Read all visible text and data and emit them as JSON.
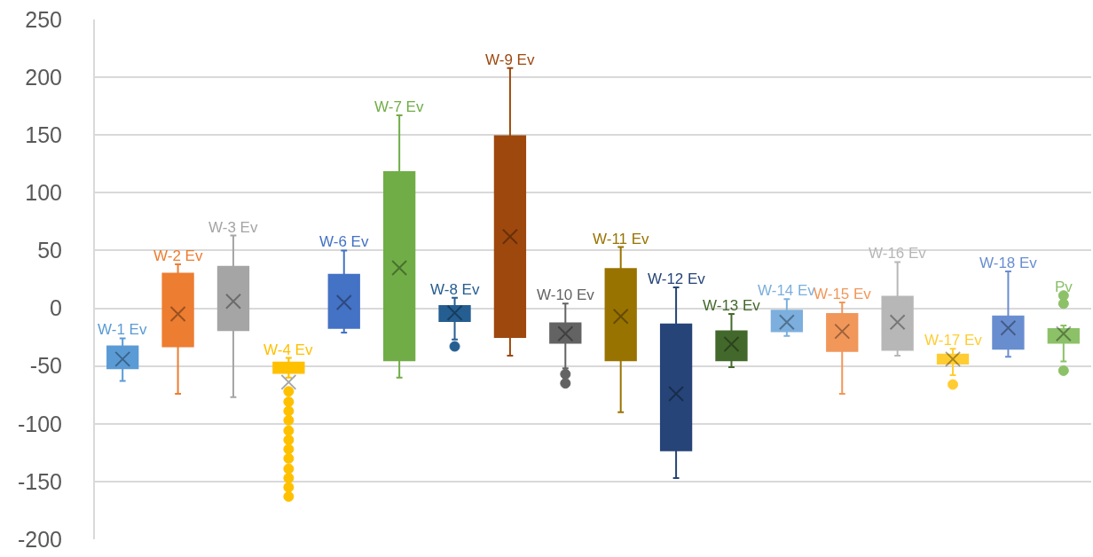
{
  "chart_data": {
    "type": "box",
    "categories": [
      null
    ],
    "ylim": [
      -200,
      250
    ],
    "yticks": [
      -200,
      -150,
      -100,
      -50,
      0,
      50,
      100,
      150,
      200,
      250
    ],
    "grid": "y",
    "tick_labels": "y",
    "marker": "circle",
    "series": [
      {
        "name": "W-1 Ev",
        "color": "#5b9bd5",
        "boxes": [
          {
            "low": -63,
            "q1": -52,
            "median": -47,
            "q3": -33,
            "high": -26,
            "mean": -44
          }
        ]
      },
      {
        "name": "W-2 Ev",
        "color": "#ed7d31",
        "boxes": [
          {
            "low": -74,
            "q1": -33,
            "median": -3,
            "q3": 30,
            "high": 38,
            "mean": -5
          }
        ]
      },
      {
        "name": "W-3 Ev",
        "color": "#a5a5a5",
        "boxes": [
          {
            "low": -77,
            "q1": -19,
            "median": 7,
            "q3": 36,
            "high": 63,
            "mean": 6
          }
        ]
      },
      {
        "name": "W-4 Ev",
        "color": "#ffc000",
        "boxes": [
          {
            "low": -60,
            "q1": -56,
            "median": -52,
            "q3": -47,
            "high": -43,
            "mean": -64,
            "outliers": [
              -72,
              -81,
              -89,
              -97,
              -106,
              -114,
              -122,
              -130,
              -139,
              -147,
              -155,
              -163
            ]
          }
        ]
      },
      {
        "name": "W-6 Ev",
        "color": "#4472c4",
        "boxes": [
          {
            "low": -21,
            "q1": -17,
            "median": -10,
            "q3": 29,
            "high": 50,
            "mean": 5
          }
        ]
      },
      {
        "name": "W-7 Ev",
        "color": "#70ad47",
        "boxes": [
          {
            "low": -60,
            "q1": -45,
            "median": 3,
            "q3": 118,
            "high": 167,
            "mean": 35
          }
        ]
      },
      {
        "name": "W-8 Ev",
        "color": "#255e91",
        "boxes": [
          {
            "low": -27,
            "q1": -11,
            "median": -4,
            "q3": 2,
            "high": 9,
            "mean": -4,
            "outliers": [
              -33
            ]
          }
        ]
      },
      {
        "name": "W-9 Ev",
        "color": "#9e480e",
        "boxes": [
          {
            "low": -41,
            "q1": -25,
            "median": 42,
            "q3": 149,
            "high": 208,
            "mean": 62
          }
        ]
      },
      {
        "name": "W-10 Ev",
        "color": "#636363",
        "boxes": [
          {
            "low": -52,
            "q1": -30,
            "median": -21,
            "q3": -13,
            "high": 4,
            "mean": -22,
            "outliers": [
              -57,
              -65
            ]
          }
        ]
      },
      {
        "name": "W-11 Ev",
        "color": "#997300",
        "boxes": [
          {
            "low": -90,
            "q1": -45,
            "median": -3,
            "q3": 34,
            "high": 53,
            "mean": -7
          }
        ]
      },
      {
        "name": "W-12 Ev",
        "color": "#264478",
        "boxes": [
          {
            "low": -147,
            "q1": -123,
            "median": -106,
            "q3": -14,
            "high": 18,
            "mean": -74
          }
        ]
      },
      {
        "name": "W-13 Ev",
        "color": "#43682b",
        "boxes": [
          {
            "low": -51,
            "q1": -45,
            "median": -30,
            "q3": -20,
            "high": -5,
            "mean": -31
          }
        ]
      },
      {
        "name": "W-14 Ev",
        "color": "#7cafdd",
        "boxes": [
          {
            "low": -24,
            "q1": -20,
            "median": -19,
            "q3": -2,
            "high": 8,
            "mean": -12
          }
        ]
      },
      {
        "name": "W-15 Ev",
        "color": "#f1975a",
        "boxes": [
          {
            "low": -74,
            "q1": -37,
            "median": -15,
            "q3": -5,
            "high": 5,
            "mean": -20
          }
        ]
      },
      {
        "name": "W-16 Ev",
        "color": "#b7b7b7",
        "boxes": [
          {
            "low": -41,
            "q1": -36,
            "median": -17,
            "q3": 10,
            "high": 40,
            "mean": -12
          }
        ]
      },
      {
        "name": "W-17 Ev",
        "color": "#ffcd33",
        "boxes": [
          {
            "low": -58,
            "q1": -48,
            "median": -43,
            "q3": -40,
            "high": -35,
            "mean": -44,
            "outliers": [
              -66
            ]
          }
        ]
      },
      {
        "name": "W-18 Ev",
        "color": "#698ed0",
        "boxes": [
          {
            "low": -42,
            "q1": -35,
            "median": -25,
            "q3": -7,
            "high": 32,
            "mean": -17
          }
        ]
      },
      {
        "name": "Pv",
        "color": "#8cc168",
        "boxes": [
          {
            "low": -46,
            "q1": -30,
            "median": -22,
            "q3": -18,
            "high": -15,
            "mean": -22,
            "outliers": [
              11,
              4,
              -54
            ]
          }
        ]
      }
    ]
  }
}
